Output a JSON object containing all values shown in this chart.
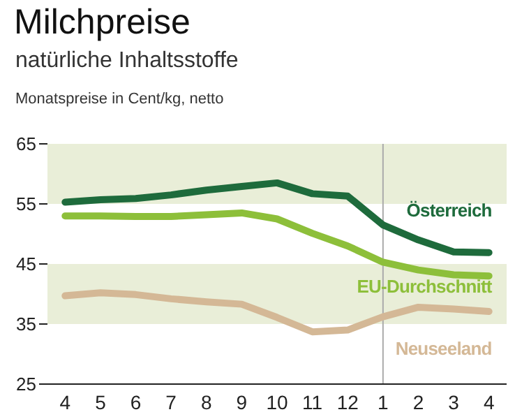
{
  "chart_data": {
    "type": "line",
    "title": "Milchpreise",
    "subtitle": "natürliche Inhaltsstoffe",
    "ylabel": "Monatspreise in Cent/kg, netto",
    "categories": [
      "4",
      "5",
      "6",
      "7",
      "8",
      "9",
      "10",
      "11",
      "12",
      "1",
      "2",
      "3",
      "4"
    ],
    "series": [
      {
        "name": "Österreich",
        "color": "#1e6b3c",
        "values": [
          55.3,
          55.7,
          55.9,
          56.5,
          57.3,
          57.9,
          58.5,
          56.7,
          56.3,
          51.5,
          49,
          47,
          46.9
        ]
      },
      {
        "name": "EU-Durchschnitt",
        "color": "#8dbf3a",
        "values": [
          53,
          53,
          52.9,
          52.9,
          53.2,
          53.5,
          52.5,
          50.1,
          48,
          45.3,
          44,
          43.2,
          43
        ]
      },
      {
        "name": "Neuseeland",
        "color": "#d4b896",
        "values": [
          39.7,
          40.2,
          39.9,
          39.2,
          38.7,
          38.3,
          36.1,
          33.7,
          34,
          36.2,
          37.8,
          37.5,
          37.1
        ]
      }
    ],
    "ylim": [
      25,
      65
    ],
    "yticks": [
      25,
      35,
      45,
      55,
      65
    ],
    "grid": false,
    "marker": "none",
    "line_style": "solid",
    "bands": [
      {
        "axis": "y",
        "from": 55,
        "to": 65,
        "color": "#e9eed8"
      },
      {
        "axis": "y",
        "from": 35,
        "to": 45,
        "color": "#e9eed8"
      }
    ],
    "ref_lines": [
      {
        "axis": "x",
        "value": "1",
        "color": "#aaaaaa"
      }
    ]
  }
}
